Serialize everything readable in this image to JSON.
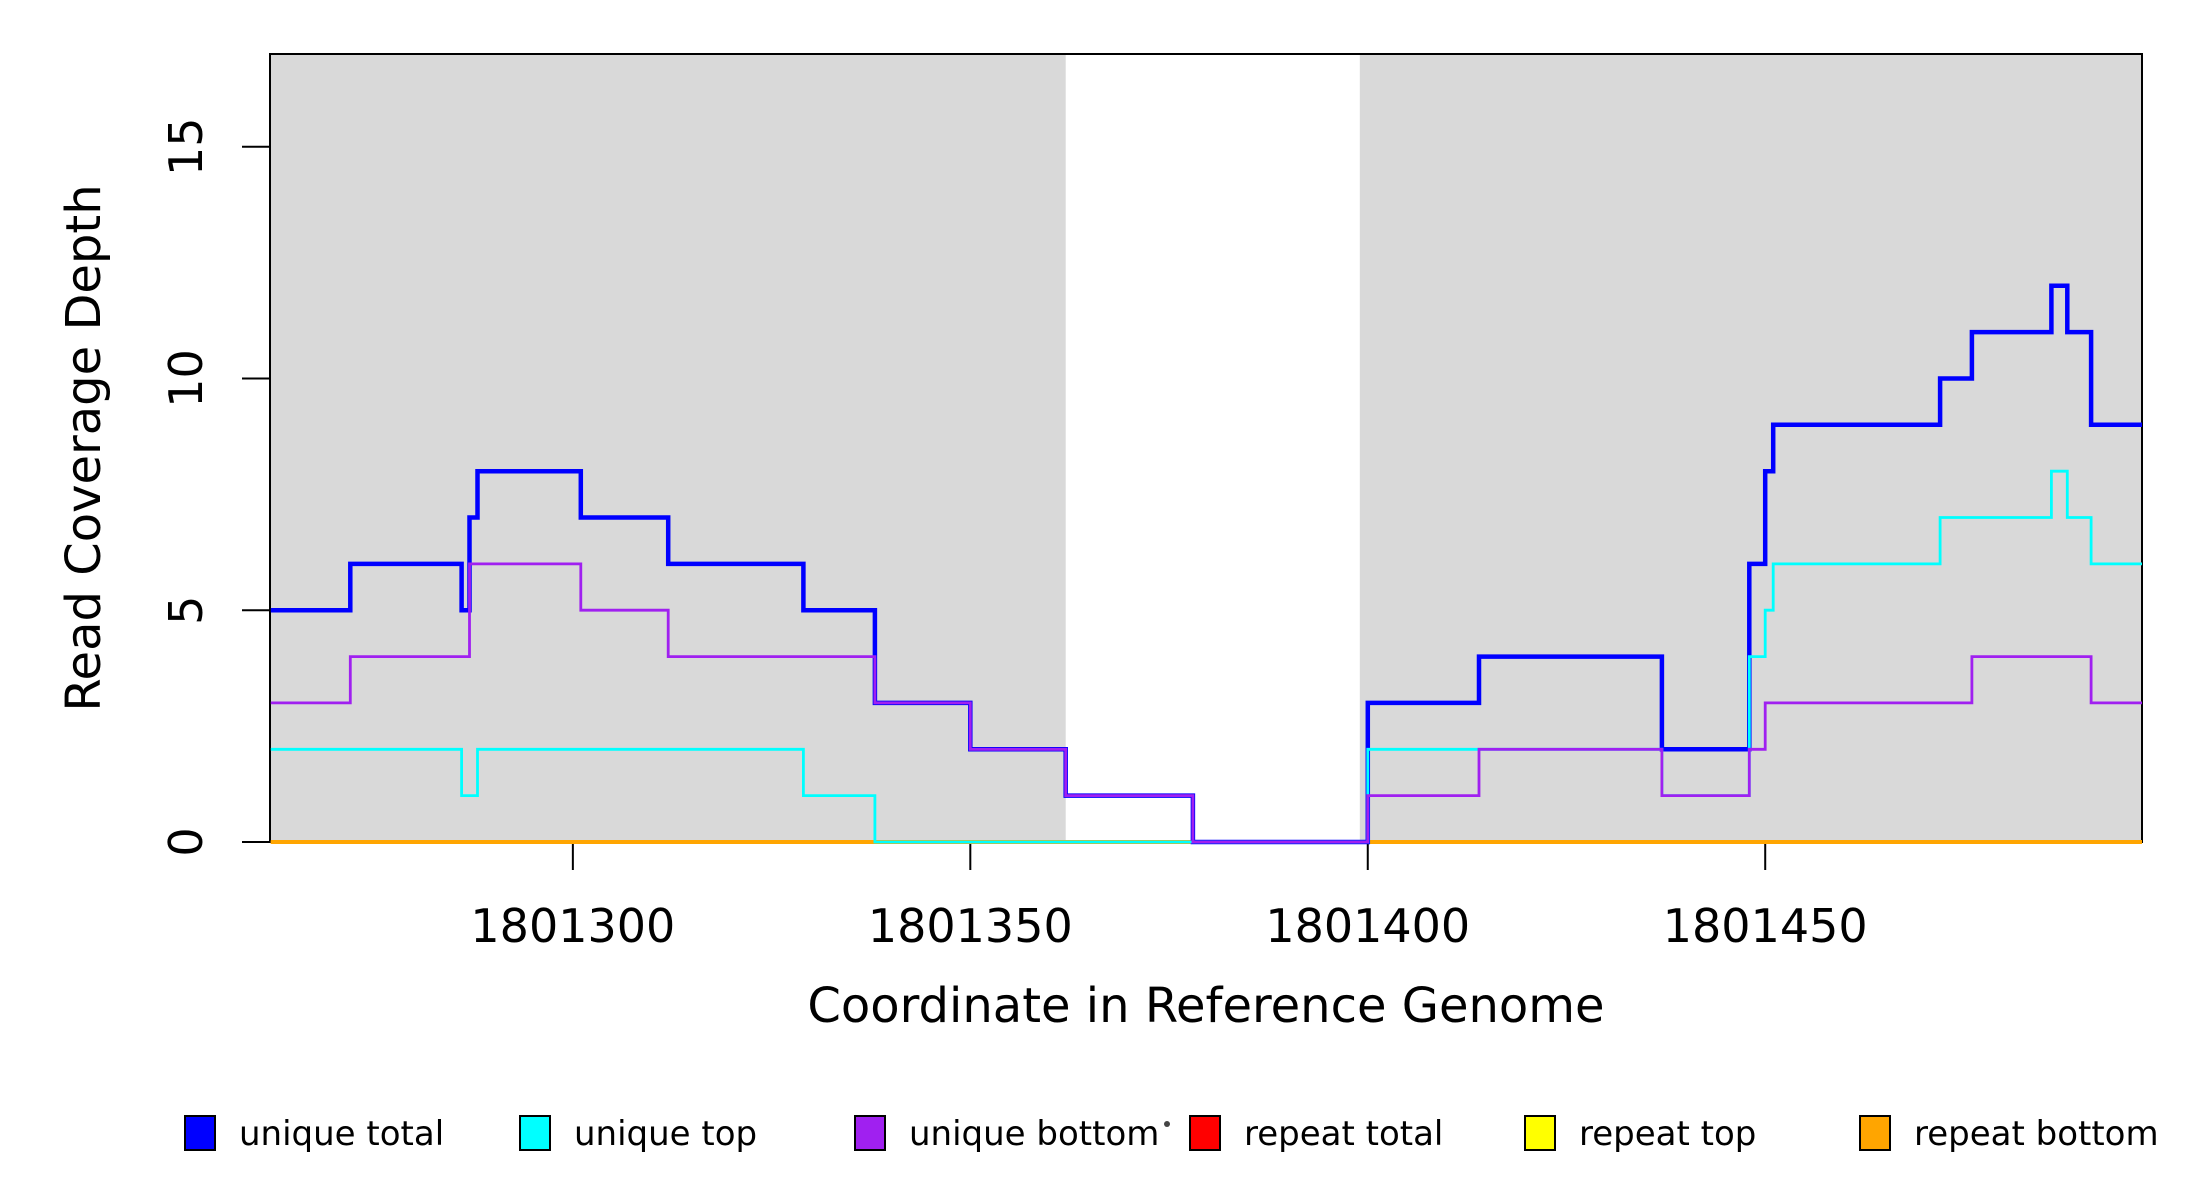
{
  "chart_data": {
    "type": "line",
    "subtype": "step-coverage-plot",
    "title": "",
    "xlabel": "Coordinate in Reference Genome",
    "ylabel": "Read Coverage Depth",
    "xlim": [
      1801261.9,
      1801497.4
    ],
    "ylim": [
      0,
      17
    ],
    "x_ticks": [
      1801300,
      1801350,
      1801400,
      1801450
    ],
    "y_ticks": [
      0,
      5,
      10,
      15
    ],
    "grid": "off",
    "panel_border_color": "#000000",
    "background_color": "#ffffff",
    "shaded_regions": [
      {
        "name": "unique-region-left",
        "x0": 1801261.9,
        "x1": 1801362.0,
        "color": "#d9d9d9"
      },
      {
        "name": "unique-region-right",
        "x0": 1801399.0,
        "x1": 1801497.4,
        "color": "#d9d9d9"
      }
    ],
    "series": [
      {
        "name": "repeat total",
        "color": "#ff0000",
        "width": 2.8,
        "steps": [
          [
            1801262,
            0
          ]
        ]
      },
      {
        "name": "repeat top",
        "color": "#ffff00",
        "width": 2.8,
        "steps": [
          [
            1801262,
            0
          ]
        ]
      },
      {
        "name": "repeat bottom",
        "color": "#ffa500",
        "width": 4,
        "steps": [
          [
            1801262,
            0
          ]
        ]
      },
      {
        "name": "unique total",
        "color": "#0000ff",
        "width": 4.5,
        "steps": [
          [
            1801262,
            5
          ],
          [
            1801272,
            6
          ],
          [
            1801286,
            5
          ],
          [
            1801287,
            7
          ],
          [
            1801288,
            8
          ],
          [
            1801301,
            7
          ],
          [
            1801312,
            6
          ],
          [
            1801329,
            5
          ],
          [
            1801338,
            3
          ],
          [
            1801350,
            2
          ],
          [
            1801362,
            1
          ],
          [
            1801378,
            0
          ],
          [
            1801400,
            3
          ],
          [
            1801414,
            4
          ],
          [
            1801437,
            2
          ],
          [
            1801448,
            6
          ],
          [
            1801450,
            8
          ],
          [
            1801451,
            9
          ],
          [
            1801472,
            10
          ],
          [
            1801476,
            11
          ],
          [
            1801486,
            12
          ],
          [
            1801488,
            11
          ],
          [
            1801491,
            9
          ]
        ]
      },
      {
        "name": "unique top",
        "color": "#00ffff",
        "width": 2.8,
        "steps": [
          [
            1801262,
            2
          ],
          [
            1801286,
            1
          ],
          [
            1801288,
            2
          ],
          [
            1801329,
            1
          ],
          [
            1801338,
            0
          ],
          [
            1801400,
            2
          ],
          [
            1801437,
            1
          ],
          [
            1801448,
            4
          ],
          [
            1801450,
            5
          ],
          [
            1801451,
            6
          ],
          [
            1801472,
            7
          ],
          [
            1801486,
            8
          ],
          [
            1801488,
            7
          ],
          [
            1801491,
            6
          ]
        ]
      },
      {
        "name": "unique bottom",
        "color": "#a020f0",
        "width": 2.8,
        "steps": [
          [
            1801262,
            3
          ],
          [
            1801272,
            4
          ],
          [
            1801287,
            6
          ],
          [
            1801301,
            5
          ],
          [
            1801312,
            4
          ],
          [
            1801338,
            3
          ],
          [
            1801350,
            2
          ],
          [
            1801362,
            1
          ],
          [
            1801378,
            0
          ],
          [
            1801400,
            1
          ],
          [
            1801414,
            2
          ],
          [
            1801437,
            1
          ],
          [
            1801448,
            2
          ],
          [
            1801450,
            3
          ],
          [
            1801476,
            4
          ],
          [
            1801491,
            3
          ]
        ]
      }
    ],
    "legend_position": "bottom-horizontal"
  },
  "legend": {
    "items": [
      {
        "label": "unique total",
        "color": "#0000ff"
      },
      {
        "label": "unique top",
        "color": "#00ffff"
      },
      {
        "label": "unique bottom",
        "color": "#a020f0"
      },
      {
        "label": "repeat total",
        "color": "#ff0000"
      },
      {
        "label": "repeat top",
        "color": "#ffff00"
      },
      {
        "label": "repeat bottom",
        "color": "#ffa500"
      }
    ]
  }
}
